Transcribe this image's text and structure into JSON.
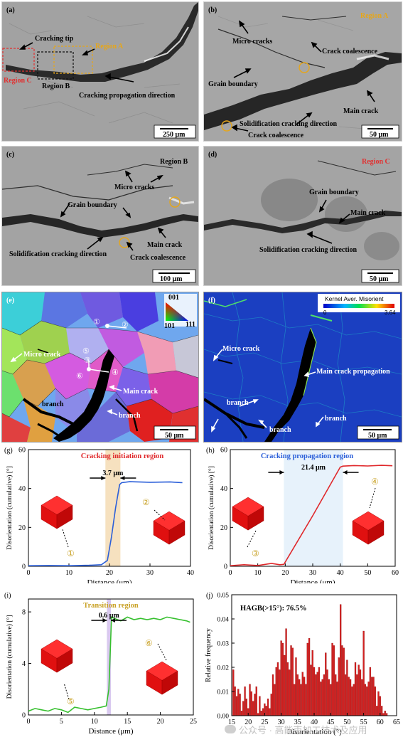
{
  "panels": {
    "a": {
      "tag": "(a)",
      "labels": [
        "Cracking tip",
        "Region A",
        "Region C",
        "Region B",
        "Cracking propagation direction"
      ],
      "scalebar": "250 μm"
    },
    "b": {
      "tag": "(b)",
      "region": "Region A",
      "labels": [
        "Micro cracks",
        "Crack coalescence",
        "Grain boundary",
        "Main crack",
        "Solidification cracking direction",
        "Crack coalescence"
      ],
      "scalebar": "50 μm"
    },
    "c": {
      "tag": "(c)",
      "region": "Region B",
      "labels": [
        "Micro cracks",
        "Grain boundary",
        "Main crack",
        "Solidification cracking direction",
        "Crack coalescence"
      ],
      "scalebar": "100 μm"
    },
    "d": {
      "tag": "(d)",
      "region": "Region C",
      "labels": [
        "Grain boundary",
        "Main crack",
        "Solidification cracking direction"
      ],
      "scalebar": "50 μm"
    },
    "e": {
      "tag": "(e)",
      "ipf": [
        "001",
        "101",
        "111"
      ],
      "markers": [
        "①",
        "②",
        "③",
        "④",
        "⑤",
        "⑥"
      ],
      "labels": [
        "Micro crack",
        "Main crack",
        "branch",
        "branch"
      ],
      "scalebar": "50 μm"
    },
    "f": {
      "tag": "(f)",
      "colorbar_title": "Kernel Aver. Misorient",
      "colorbar_min": "0",
      "colorbar_max": "3.64",
      "labels": [
        "Micro crack",
        "Main crack propagation",
        "branch",
        "branch",
        "branch"
      ],
      "scalebar": "50 μm"
    }
  },
  "chart_data": [
    {
      "id": "g",
      "tag": "(g)",
      "type": "line",
      "title": "Cracking initiation region",
      "xlabel": "Distance (μm)",
      "ylabel": "Disorientation (cumulative) [°]",
      "xlim": [
        0,
        40
      ],
      "ylim": [
        0,
        60
      ],
      "xticks": [
        0,
        10,
        20,
        30,
        40
      ],
      "yticks": [
        0,
        20,
        40,
        60
      ],
      "series": [
        {
          "color": "#2b5fd9",
          "x": [
            0,
            5,
            10,
            15,
            18,
            19.5,
            20.5,
            21.5,
            22.5,
            23,
            25,
            30,
            35,
            38
          ],
          "y": [
            0.3,
            0.4,
            0.3,
            0.5,
            0.8,
            3,
            15,
            30,
            42,
            43,
            43.5,
            43.2,
            43.4,
            43
          ]
        }
      ],
      "band": [
        19,
        22.7
      ],
      "band_color": "#f6e1bf",
      "annotation": "3.7 μm",
      "markers": [
        {
          "text": "①"
        },
        {
          "text": "②"
        }
      ]
    },
    {
      "id": "h",
      "tag": "(h)",
      "type": "line",
      "title": "Cracking propagation region",
      "xlabel": "Distance (μm)",
      "ylabel": "Disorientation (cumulative) [°]",
      "xlim": [
        0,
        60
      ],
      "ylim": [
        0,
        60
      ],
      "xticks": [
        0,
        10,
        20,
        30,
        40,
        50,
        60
      ],
      "yticks": [
        0,
        20,
        40,
        60
      ],
      "series": [
        {
          "color": "#e0282b",
          "x": [
            0,
            5,
            10,
            15,
            18,
            19.5,
            30,
            40,
            41,
            45,
            50,
            55,
            59
          ],
          "y": [
            0.3,
            0.8,
            0.4,
            1.5,
            0.8,
            1,
            26,
            51,
            51.5,
            51.8,
            51.6,
            51.9,
            51.7
          ]
        }
      ],
      "band": [
        19.5,
        41
      ],
      "band_color": "#e7f2fb",
      "annotation": "21.4 μm",
      "markers": [
        {
          "text": "③"
        },
        {
          "text": "④"
        }
      ]
    },
    {
      "id": "i",
      "tag": "(i)",
      "type": "line",
      "title": "Transition region",
      "xlabel": "Distance (μm)",
      "ylabel": "Disorientation (cumulative) [°]",
      "xlim": [
        0,
        25
      ],
      "ylim": [
        0,
        9
      ],
      "xticks": [
        0,
        5,
        10,
        15,
        20,
        25
      ],
      "yticks": [
        0,
        4,
        8
      ],
      "series": [
        {
          "color": "#36c02e",
          "x": [
            0,
            1,
            2,
            3,
            4,
            5,
            6,
            7,
            8,
            9,
            10,
            11,
            11.8,
            12.2,
            12.6,
            13,
            14,
            15,
            16,
            17,
            18,
            19,
            20,
            21,
            22,
            23,
            24,
            24.5
          ],
          "y": [
            0.3,
            0.5,
            0.4,
            0.3,
            0.5,
            0.4,
            0.2,
            0.6,
            0.5,
            0.4,
            0.5,
            0.6,
            0.7,
            2,
            7.6,
            7.5,
            7.3,
            7.6,
            7.4,
            7.5,
            7.4,
            7.5,
            7.4,
            7.6,
            7.5,
            7.4,
            7.3,
            7.2
          ]
        }
      ],
      "band": [
        11.9,
        12.5
      ],
      "band_color": "#d9c9ef",
      "annotation": "0.6 μm",
      "markers": [
        {
          "text": "⑤"
        },
        {
          "text": "⑥"
        }
      ]
    },
    {
      "id": "j",
      "tag": "(j)",
      "type": "bar",
      "title": "",
      "annotation": "HAGB(>15°): 76.5%",
      "xlabel": "Disorientation (°)",
      "ylabel": "Relative frequency",
      "xlim": [
        15,
        65
      ],
      "ylim": [
        0,
        0.05
      ],
      "xticks": [
        15,
        20,
        25,
        30,
        35,
        40,
        45,
        50,
        55,
        60,
        65
      ],
      "yticks": [
        0,
        0.01,
        0.02,
        0.03,
        0.04,
        0.05
      ],
      "bar_color": "#d42020",
      "x": [
        15.5,
        16,
        16.5,
        17,
        17.5,
        18,
        18.5,
        19,
        19.5,
        20,
        20.5,
        21,
        21.5,
        22,
        22.5,
        23,
        23.5,
        24,
        24.5,
        25,
        25.5,
        26,
        26.5,
        27,
        27.5,
        28,
        28.5,
        29,
        29.5,
        30,
        30.5,
        31,
        31.5,
        32,
        32.5,
        33,
        33.5,
        34,
        34.5,
        35,
        35.5,
        36,
        36.5,
        37,
        37.5,
        38,
        38.5,
        39,
        39.5,
        40,
        40.5,
        41,
        41.5,
        42,
        42.5,
        43,
        43.5,
        44,
        44.5,
        45,
        45.5,
        46,
        46.5,
        47,
        47.5,
        48,
        48.5,
        49,
        49.5,
        50,
        50.5,
        51,
        51.5,
        52,
        52.5,
        53,
        53.5,
        54,
        54.5,
        55,
        55.5,
        56,
        56.5,
        57,
        57.5,
        58,
        58.5,
        59,
        59.5,
        60,
        60.5,
        61,
        61.5,
        62
      ],
      "values": [
        0.019,
        0.012,
        0.008,
        0.011,
        0.009,
        0.002,
        0.006,
        0.012,
        0.007,
        0.003,
        0.013,
        0.01,
        0.006,
        0.009,
        0.012,
        0.001,
        0.008,
        0.002,
        0.003,
        0.005,
        0.004,
        0.007,
        0.003,
        0.009,
        0.017,
        0.013,
        0.02,
        0.022,
        0.019,
        0.031,
        0.03,
        0.025,
        0.036,
        0.022,
        0.019,
        0.029,
        0.028,
        0.013,
        0.024,
        0.017,
        0.015,
        0.013,
        0.018,
        0.016,
        0.013,
        0.03,
        0.032,
        0.021,
        0.027,
        0.02,
        0.017,
        0.018,
        0.02,
        0.014,
        0.015,
        0.017,
        0.026,
        0.019,
        0.015,
        0.013,
        0.03,
        0.029,
        0.017,
        0.014,
        0.024,
        0.046,
        0.029,
        0.028,
        0.017,
        0.023,
        0.016,
        0.015,
        0.012,
        0.013,
        0.022,
        0.017,
        0.021,
        0.019,
        0.015,
        0.035,
        0.013,
        0.012,
        0.014,
        0.02,
        0.016,
        0.016,
        0.012,
        0.004,
        0.01,
        0.008,
        0.004,
        0.001,
        0.002,
        0.001
      ]
    }
  ],
  "watermark": "公众号 · 高能束加工技术及应用"
}
